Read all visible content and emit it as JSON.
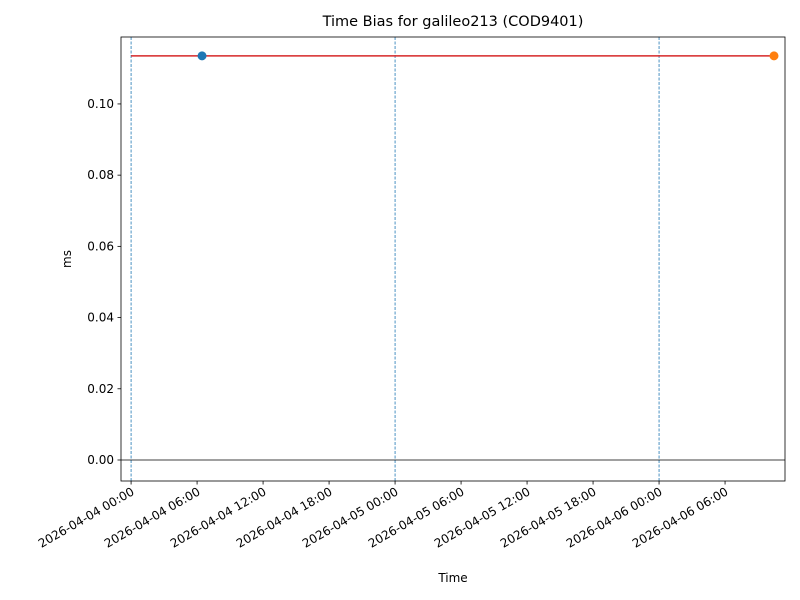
{
  "chart_data": {
    "type": "line",
    "title": "Time Bias for galileo213 (COD9401)",
    "x_label": "Time",
    "y_label": "ms",
    "xlim": [
      "2026-04-03 23:05",
      "2026-04-06 11:27"
    ],
    "xticks": [
      "2026-04-04 00:00",
      "2026-04-04 06:00",
      "2026-04-04 12:00",
      "2026-04-04 18:00",
      "2026-04-05 00:00",
      "2026-04-05 06:00",
      "2026-04-05 12:00",
      "2026-04-05 18:00",
      "2026-04-06 00:00",
      "2026-04-06 06:00"
    ],
    "ylim": [
      -0.0059,
      0.1188
    ],
    "yticks": [
      {
        "value": 0,
        "label": "0.00"
      },
      {
        "value": 0.02,
        "label": "0.02"
      },
      {
        "value": 0.04,
        "label": "0.04"
      },
      {
        "value": 0.06,
        "label": "0.06"
      },
      {
        "value": 0.08,
        "label": "0.08"
      },
      {
        "value": 0.1,
        "label": "0.10"
      }
    ],
    "vlines": {
      "color": "#1f77b4",
      "x": [
        "2026-04-04 00:00",
        "2026-04-05 00:00",
        "2026-04-06 00:00"
      ]
    },
    "hline": {
      "color": "#000000",
      "y": 0
    },
    "series": [
      {
        "type": "line",
        "color": "#d62728",
        "x": [
          "2026-04-04 00:00",
          "2026-04-06 10:27"
        ],
        "values": [
          0.1135,
          0.1135
        ]
      },
      {
        "type": "scatter",
        "color": "#1f77b4",
        "x": [
          "2026-04-04 06:27"
        ],
        "values": [
          0.1135
        ]
      },
      {
        "type": "scatter",
        "color": "#ff7f0e",
        "x": [
          "2026-04-06 10:27"
        ],
        "values": [
          0.1135
        ]
      }
    ]
  }
}
